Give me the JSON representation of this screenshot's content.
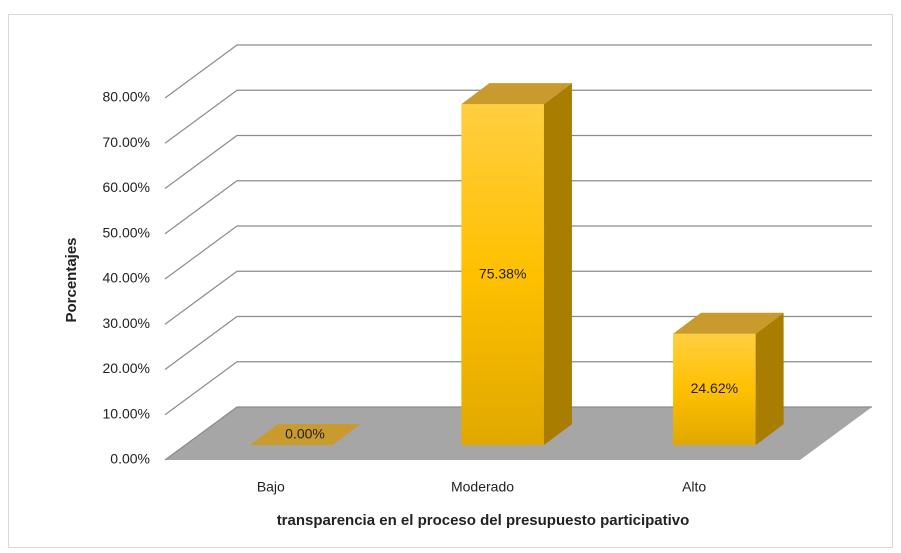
{
  "chart_data": {
    "type": "bar3d",
    "categories": [
      "Bajo",
      "Moderado",
      "Alto"
    ],
    "values": [
      0,
      75.38,
      24.62
    ],
    "value_labels": [
      "0.00%",
      "75.38%",
      "24.62%"
    ],
    "color": "#ffc000",
    "y_label": "Porcentajes",
    "x_label": "transparencia en el proceso del presupuesto participativo",
    "ylim": [
      0,
      80
    ],
    "yticks": [
      {
        "value": 0,
        "label": "0.00%"
      },
      {
        "value": 10,
        "label": "10.00%"
      },
      {
        "value": 20,
        "label": "20.00%"
      },
      {
        "value": 30,
        "label": "30.00%"
      },
      {
        "value": 40,
        "label": "40.00%"
      },
      {
        "value": 50,
        "label": "50.00%"
      },
      {
        "value": 60,
        "label": "60.00%"
      },
      {
        "value": 70,
        "label": "70.00%"
      },
      {
        "value": 80,
        "label": "80.00%"
      }
    ],
    "grid": true
  }
}
